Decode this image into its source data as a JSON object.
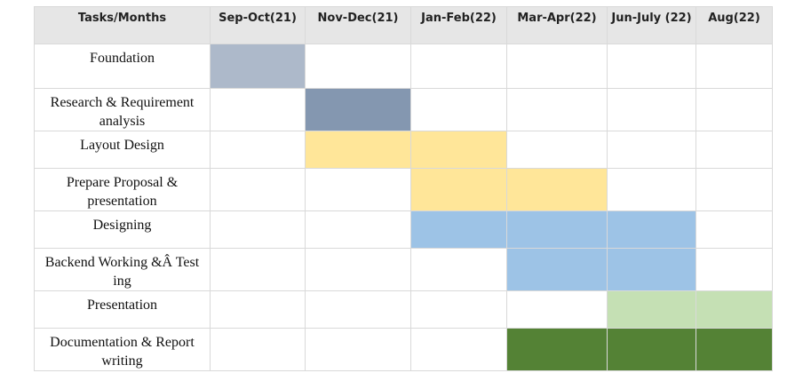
{
  "chart_data": {
    "type": "table",
    "header_label": "Tasks/Months",
    "periods": [
      "Sep-Oct(21)",
      "Nov-Dec(21)",
      "Jan-Feb(22)",
      "Mar-Apr(22)",
      "Jun-July (22)",
      "Aug(22)"
    ],
    "tasks": [
      {
        "name": "Foundation",
        "start": 0,
        "end": 0,
        "color": "#adb9ca"
      },
      {
        "name": "Research & Requirement analysis",
        "start": 1,
        "end": 1,
        "color": "#8497b0"
      },
      {
        "name": "Layout Design",
        "start": 1,
        "end": 2,
        "color": "#ffe699"
      },
      {
        "name": "Prepare Proposal & presentation",
        "start": 2,
        "end": 3,
        "color": "#ffe699"
      },
      {
        "name": "Designing",
        "start": 2,
        "end": 4,
        "color": "#9dc3e6"
      },
      {
        "name": "Backend Working &Â Test ing",
        "start": 3,
        "end": 4,
        "color": "#9dc3e6"
      },
      {
        "name": "Presentation",
        "start": 4,
        "end": 5,
        "color": "#c5e0b4"
      },
      {
        "name": "Documentation & Report writing",
        "start": 3,
        "end": 5,
        "color": "#548235"
      }
    ]
  }
}
